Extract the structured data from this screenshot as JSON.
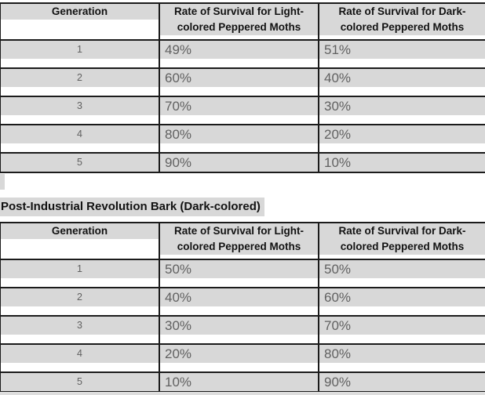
{
  "colors": {
    "highlight": "#d8d8d8",
    "border": "#1b1b1b",
    "header_text": "#121212",
    "data_text": "#616161",
    "page_background": "#ffffff"
  },
  "section_label": "Post-Industrial Revolution Bark (Dark-colored)",
  "tables": [
    {
      "name": "pre-industrial-table",
      "headers": [
        {
          "lines": [
            "Generation"
          ]
        },
        {
          "lines": [
            "Rate of Survival for Light-",
            "colored Peppered Moths"
          ]
        },
        {
          "lines": [
            "Rate of Survival for Dark-",
            "colored Peppered Moths"
          ]
        }
      ],
      "rows": [
        [
          "1",
          "49%",
          "51%"
        ],
        [
          "2",
          "60%",
          "40%"
        ],
        [
          "3",
          "70%",
          "30%"
        ],
        [
          "4",
          "80%",
          "20%"
        ],
        [
          "5",
          "90%",
          "10%"
        ]
      ]
    },
    {
      "name": "post-industrial-table",
      "headers": [
        {
          "lines": [
            "Generation"
          ]
        },
        {
          "lines": [
            "Rate of Survival for Light-",
            "colored Peppered Moths"
          ]
        },
        {
          "lines": [
            "Rate of Survival for Dark-",
            "colored Peppered Moths"
          ]
        }
      ],
      "rows": [
        [
          "1",
          "50%",
          "50%"
        ],
        [
          "2",
          "40%",
          "60%"
        ],
        [
          "3",
          "30%",
          "70%"
        ],
        [
          "4",
          "20%",
          "80%"
        ],
        [
          "5",
          "10%",
          "90%"
        ]
      ]
    }
  ]
}
